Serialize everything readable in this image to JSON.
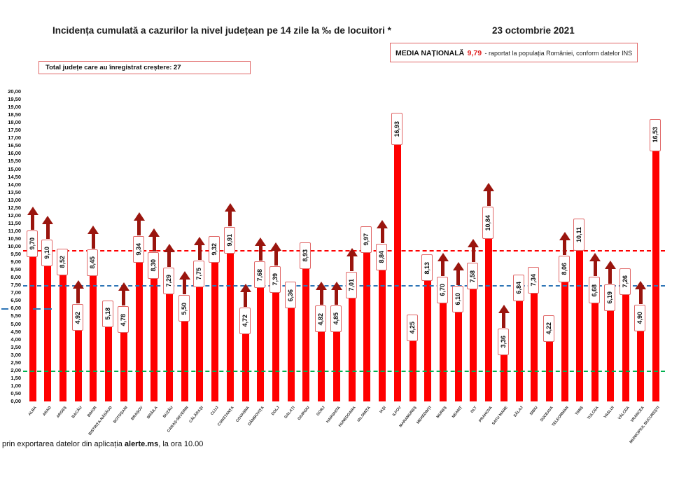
{
  "header": {
    "title": "Incidența cumulată a cazurilor la nivel județean pe 14 zile la ‰ de locuitori *",
    "date": "23 octombrie 2021",
    "media_label": "MEDIA NAȚIONALĂ",
    "media_value": "9,79",
    "media_suffix": "-  raportat la populația României, conform datelor INS",
    "total_label": "Total județe care au înregistrat creștere:  27"
  },
  "footer": {
    "text_before": "prin exportarea datelor din aplicația ",
    "app_name": "alerte.ms",
    "text_after": ", la ora 10.00"
  },
  "chart_data": {
    "type": "bar",
    "title": "Incidența cumulată a cazurilor la nivel județean pe 14 zile la ‰ de locuitori *",
    "xlabel": "",
    "ylabel": "",
    "ylim": [
      0,
      20
    ],
    "ytick_step": 0.5,
    "grid": false,
    "legend": false,
    "national_average": 9.79,
    "counties_increasing": 27,
    "categories": [
      "ALBA",
      "ARAD",
      "ARGEȘ",
      "BACĂU",
      "BIHOR",
      "BISTRIȚA-NĂSĂUD",
      "BOTOȘANI",
      "BRAȘOV",
      "BRĂILA",
      "BUZĂU",
      "CARAȘ-SEVERIN",
      "CĂLĂRAȘI",
      "CLUJ",
      "CONSTANȚA",
      "COVASNA",
      "DÂMBOVIȚA",
      "DOLJ",
      "GALAȚI",
      "GIURGIU",
      "GORJ",
      "HARGHITA",
      "HUNEDOARA",
      "IALOMIȚA",
      "IAȘI",
      "ILFOV",
      "MARAMUREȘ",
      "MEHEDINȚI",
      "MUREȘ",
      "NEAMȚ",
      "OLT",
      "PRAHOVA",
      "SATU MARE",
      "SĂLAJ",
      "SIBIU",
      "SUCEAVA",
      "TELEORMAN",
      "TIMIȘ",
      "TULCEA",
      "VASLUI",
      "VÂLCEA",
      "VRANCEA",
      "MUNICIPIUL BUCUREȘTI"
    ],
    "values": [
      9.7,
      9.1,
      8.52,
      4.92,
      8.45,
      5.18,
      4.78,
      9.34,
      8.3,
      7.29,
      5.5,
      7.75,
      9.32,
      9.91,
      4.72,
      7.68,
      7.39,
      6.36,
      8.93,
      4.82,
      4.85,
      7.01,
      9.97,
      8.84,
      16.93,
      4.25,
      8.13,
      6.7,
      6.1,
      7.58,
      10.84,
      3.36,
      6.84,
      7.34,
      4.22,
      8.06,
      10.11,
      6.68,
      6.19,
      7.26,
      4.9,
      16.53
    ],
    "value_labels": [
      "9,70",
      "9,10",
      "8,52",
      "4,92",
      "8,45",
      "5,18",
      "4,78",
      "9,34",
      "8,30",
      "7,29",
      "5,50",
      "7,75",
      "9,32",
      "9,91",
      "4,72",
      "7,68",
      "7,39",
      "6,36",
      "8,93",
      "4,82",
      "4,85",
      "7,01",
      "9,97",
      "8,84",
      "16,93",
      "4,25",
      "8,13",
      "6,70",
      "6,10",
      "7,58",
      "10,84",
      "3,36",
      "6,84",
      "7,34",
      "4,22",
      "8,06",
      "10,11",
      "6,68",
      "6,19",
      "7,26",
      "4,90",
      "16,53"
    ],
    "increase": [
      true,
      true,
      false,
      true,
      true,
      false,
      true,
      true,
      true,
      true,
      true,
      true,
      false,
      true,
      true,
      true,
      true,
      false,
      false,
      true,
      true,
      true,
      false,
      true,
      false,
      false,
      false,
      true,
      true,
      true,
      true,
      true,
      false,
      false,
      false,
      true,
      false,
      true,
      true,
      false,
      true,
      false
    ],
    "reference_lines": [
      {
        "name": "media-nationala",
        "value": 9.79,
        "color": "#ff0000",
        "style": "dashed",
        "thickness": 2.5
      },
      {
        "name": "prag-albastru",
        "value": 7.5,
        "color": "#2e75b6",
        "style": "dashed",
        "thickness": 2.5
      },
      {
        "name": "prag-verde",
        "value": 2.0,
        "color": "#00b050",
        "style": "dashed",
        "thickness": 2
      }
    ],
    "extra_marks": {
      "value": 6.0,
      "color": "#2e75b6",
      "segments": [
        [
          2,
          12
        ],
        [
          47,
          58
        ],
        [
          63,
          74
        ]
      ]
    },
    "colors": {
      "bar": "#fe0000",
      "arrow": "#9a150e",
      "label_border": "#e06666"
    }
  }
}
